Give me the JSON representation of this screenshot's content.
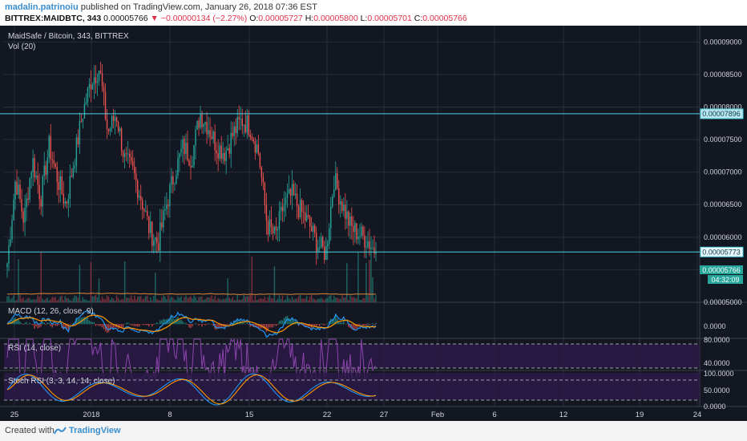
{
  "header": {
    "author": "madalin.patrinoiu",
    "published": "published on TradingView.com, January 26, 2018 07:36 EST",
    "symbol": "BITTREX:MAIDBTC, 343",
    "last": "0.00005766",
    "change": "−0.00000134 (−2.27%)",
    "o_label": "O:",
    "o_value": "0.00005727",
    "h_label": "H:",
    "h_value": "0.00005800",
    "l_label": "L:",
    "l_value": "0.00005701",
    "c_label": "C:",
    "c_value": "0.00005766"
  },
  "footer": {
    "created": "Created with",
    "brand": "TradingView"
  },
  "colors": {
    "bg": "#131722",
    "up": "#26a69a",
    "down": "#ef5350",
    "grid": "#2a2e39",
    "hline": "#4dd0e1",
    "macd": "#2196f3",
    "signal": "#ff9800",
    "rsi": "#8e44ad",
    "stoch_k": "#2196f3",
    "stoch_d": "#ff9800"
  },
  "chart_data": [
    {
      "type": "candlestick",
      "title": "MaidSafe / Bitcoin, 343, BITTREX",
      "indicator": "Vol (20)",
      "x_ticks": [
        "25",
        "2018",
        "8",
        "15",
        "22",
        "27",
        "Feb",
        "6",
        "12",
        "19",
        "24"
      ],
      "y_ticks": [
        "0.00009000",
        "0.00008500",
        "0.00008000",
        "0.00007500",
        "0.00007000",
        "0.00006500",
        "0.00006000",
        "0.00005500",
        "0.00005000"
      ],
      "ylim": [
        5e-05,
        9.25e-05
      ],
      "price_lines": [
        {
          "value": 7.896e-05,
          "label": "0.00007896"
        },
        {
          "value": 5.773e-05,
          "label": "0.00005773"
        }
      ],
      "last_price_label": "0.00005766",
      "countdown": "04:32:09",
      "close_path": [
        5.6e-05,
        6.9e-05,
        6.25e-05,
        7.2e-05,
        6.6e-05,
        7.4e-05,
        6.9e-05,
        6.5e-05,
        7.2e-05,
        7.9e-05,
        8.4e-05,
        8.6e-05,
        7.6e-05,
        7.9e-05,
        7.2e-05,
        7e-05,
        6.6e-05,
        6.1e-05,
        5.9e-05,
        6.5e-05,
        7e-05,
        7.4e-05,
        7.2e-05,
        7.9e-05,
        7.7e-05,
        7.4e-05,
        7.3e-05,
        7.6e-05,
        7.8e-05,
        7.7e-05,
        7.3e-05,
        6.2e-05,
        6e-05,
        6.5e-05,
        6.65e-05,
        6.4e-05,
        6.2e-05,
        5.9e-05,
        5.75e-05,
        6.9e-05,
        6.5e-05,
        6.15e-05,
        6.05e-05,
        5.95e-05,
        5.77e-05
      ]
    },
    {
      "type": "line",
      "title": "MACD (12, 26, close, 9)",
      "y_ticks": [
        "0.0000"
      ]
    },
    {
      "type": "line",
      "title": "RSI (14, close)",
      "y_ticks": [
        "80.0000",
        "40.0000"
      ],
      "ylim": [
        20,
        90
      ]
    },
    {
      "type": "line",
      "title": "Stoch RSI (3, 3, 14, 14, close)",
      "y_ticks": [
        "100.0000",
        "50.0000",
        "0.0000"
      ],
      "ylim": [
        0,
        100
      ]
    }
  ]
}
